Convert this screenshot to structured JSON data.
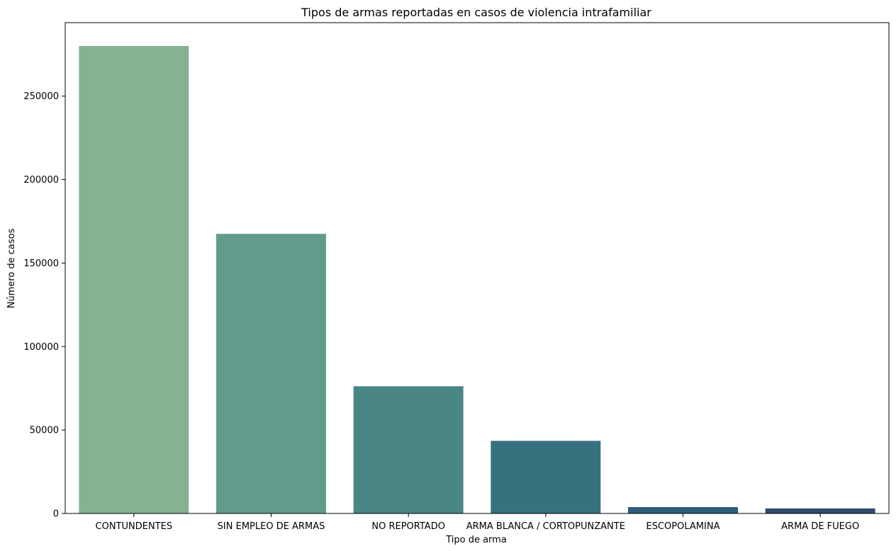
{
  "chart_data": {
    "type": "bar",
    "title": "Tipos de armas reportadas en casos de violencia intrafamiliar",
    "xlabel": "Tipo de arma",
    "ylabel": "Número de casos",
    "categories": [
      "CONTUNDENTES",
      "SIN EMPLEO DE ARMAS",
      "NO REPORTADO",
      "ARMA BLANCA / CORTOPUNZANTE",
      "ESCOPOLAMINA",
      "ARMA DE FUEGO"
    ],
    "values": [
      280000,
      167500,
      76200,
      43500,
      3800,
      3000
    ],
    "colors": [
      "#84b393",
      "#629b8c",
      "#4a8684",
      "#36717e",
      "#2b5c7a",
      "#2d4a6b"
    ],
    "ylim": [
      0,
      294000
    ],
    "yticks": [
      0,
      50000,
      100000,
      150000,
      200000,
      250000
    ],
    "ytick_labels": [
      "0",
      "50000",
      "100000",
      "150000",
      "200000",
      "250000"
    ],
    "grid": false,
    "legend": "none"
  }
}
